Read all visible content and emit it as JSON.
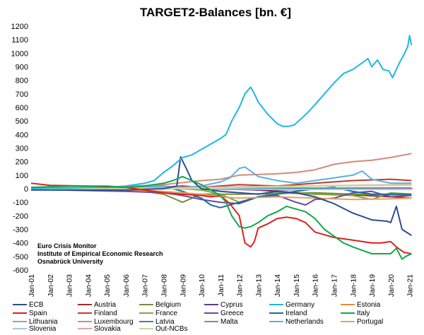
{
  "chart_data": {
    "type": "line",
    "title": "TARGET2-Balances [bn. €]",
    "xlabel": "",
    "ylabel": "",
    "ylim": [
      -600,
      1200
    ],
    "yticks": [
      -600,
      -500,
      -400,
      -300,
      -200,
      -100,
      0,
      100,
      200,
      300,
      400,
      500,
      600,
      700,
      800,
      900,
      1000,
      1100,
      1200
    ],
    "xlim": [
      2001,
      2021.2
    ],
    "xtick_labels": [
      "Jan-01",
      "Jan-02",
      "Jan-03",
      "Jan-04",
      "Jan-05",
      "Jan-06",
      "Jan-07",
      "Jan-08",
      "Jan-09",
      "Jan-10",
      "Jan-11",
      "Jan-12",
      "Jan-13",
      "Jan-14",
      "Jan-15",
      "Jan-16",
      "Jan-17",
      "Jan-18",
      "Jan-19",
      "Jan-20",
      "Jan-21"
    ],
    "grid": false,
    "legend_position": "bottom",
    "annotation": [
      "Euro Crisis Monitor",
      "Institute of Empirical Economic Research",
      "Osnabrück University"
    ],
    "series": [
      {
        "name": "ECB",
        "color": "#2e4d8f",
        "x": [
          2001,
          2006,
          2008,
          2008.7,
          2008.9,
          2009.2,
          2009.5,
          2010,
          2011,
          2012,
          2013,
          2014,
          2015,
          2016,
          2017,
          2018,
          2019,
          2019.8,
          2020.0,
          2020.3,
          2020.6,
          2021.1
        ],
        "values": [
          -10,
          -10,
          0,
          20,
          235,
          150,
          60,
          0,
          -20,
          -30,
          -40,
          -20,
          -30,
          -60,
          -110,
          -180,
          -230,
          -240,
          -250,
          -130,
          -300,
          -345
        ]
      },
      {
        "name": "Austria",
        "color": "#a52a2a",
        "x": [
          2001,
          2005,
          2008,
          2009,
          2010,
          2012,
          2014,
          2016,
          2018,
          2020,
          2021.1
        ],
        "values": [
          0,
          5,
          10,
          20,
          10,
          0,
          -20,
          -40,
          -45,
          -60,
          -50
        ]
      },
      {
        "name": "Belgium",
        "color": "#7a8c3a",
        "x": [
          2001,
          2006,
          2008,
          2009,
          2010,
          2012,
          2014,
          2016,
          2018,
          2020,
          2021.1
        ],
        "values": [
          -5,
          0,
          -40,
          -100,
          -40,
          -40,
          -35,
          -30,
          -40,
          -45,
          -45
        ]
      },
      {
        "name": "Cyprus",
        "color": "#5e3c8c",
        "x": [
          2001,
          2008,
          2012,
          2013,
          2016,
          2021.1
        ],
        "values": [
          0,
          0,
          -5,
          -10,
          -5,
          -5
        ]
      },
      {
        "name": "Germany",
        "color": "#1fb6e6",
        "x": [
          2001,
          2002,
          2003,
          2004,
          2005,
          2006,
          2007,
          2007.5,
          2008,
          2008.5,
          2009,
          2009.5,
          2010,
          2010.5,
          2011,
          2011.3,
          2011.6,
          2012,
          2012.3,
          2012.6,
          2012.8,
          2013,
          2013.5,
          2014,
          2014.3,
          2014.6,
          2014.9,
          2015.3,
          2015.6,
          2016,
          2016.5,
          2017,
          2017.5,
          2018,
          2018.5,
          2018.8,
          2019,
          2019.3,
          2019.6,
          2019.9,
          2020.1,
          2020.3,
          2020.5,
          2020.7,
          2020.9,
          2021.0,
          2021.1
        ],
        "values": [
          0,
          5,
          5,
          10,
          10,
          20,
          40,
          60,
          120,
          170,
          230,
          250,
          290,
          330,
          370,
          400,
          500,
          600,
          700,
          750,
          700,
          640,
          550,
          480,
          460,
          460,
          470,
          520,
          560,
          620,
          700,
          780,
          850,
          880,
          930,
          960,
          900,
          950,
          880,
          870,
          820,
          880,
          940,
          990,
          1050,
          1130,
          1060
        ]
      },
      {
        "name": "Estonia",
        "color": "#e08d3a",
        "x": [
          2001,
          2010,
          2015,
          2021.1
        ],
        "values": [
          0,
          0,
          -5,
          -5
        ]
      },
      {
        "name": "Spain",
        "color": "#e02020",
        "x": [
          2001,
          2002,
          2004,
          2006,
          2008,
          2009,
          2010,
          2010.5,
          2011,
          2011.5,
          2012,
          2012.3,
          2012.6,
          2012.8,
          2013,
          2013.5,
          2014,
          2014.5,
          2015,
          2015.5,
          2016,
          2016.5,
          2017,
          2018,
          2019,
          2019.5,
          2020,
          2020.3,
          2020.7,
          2021.1
        ],
        "values": [
          40,
          25,
          20,
          10,
          -30,
          -40,
          -50,
          -60,
          -50,
          -110,
          -200,
          -400,
          -430,
          -390,
          -290,
          -260,
          -220,
          -210,
          -220,
          -250,
          -320,
          -340,
          -360,
          -380,
          -400,
          -400,
          -390,
          -430,
          -470,
          -480
        ]
      },
      {
        "name": "Finland",
        "color": "#c0392b",
        "x": [
          2001,
          2005,
          2008,
          2010,
          2012,
          2014,
          2016,
          2018,
          2020,
          2021.1
        ],
        "values": [
          0,
          5,
          10,
          10,
          30,
          20,
          40,
          60,
          70,
          60
        ]
      },
      {
        "name": "France",
        "color": "#7fa83c",
        "x": [
          2001,
          2004,
          2008,
          2010,
          2011,
          2012,
          2013,
          2014,
          2016,
          2018,
          2019,
          2020,
          2021.1
        ],
        "values": [
          -5,
          0,
          10,
          -10,
          -40,
          -100,
          -60,
          -30,
          -40,
          -50,
          -80,
          -30,
          -40
        ]
      },
      {
        "name": "Greece",
        "color": "#6a4a9e",
        "x": [
          2001,
          2006,
          2008,
          2009,
          2010,
          2011,
          2012,
          2013,
          2014,
          2015,
          2015.5,
          2016,
          2017,
          2018,
          2019,
          2020,
          2021.1
        ],
        "values": [
          -5,
          -20,
          -30,
          -50,
          -80,
          -100,
          -110,
          -60,
          -50,
          -100,
          -120,
          -80,
          -70,
          -30,
          -20,
          -60,
          -70
        ]
      },
      {
        "name": "Ireland",
        "color": "#1a6ca8",
        "x": [
          2001,
          2006,
          2007.5,
          2008,
          2009,
          2010,
          2010.5,
          2011,
          2011.5,
          2012,
          2013,
          2014,
          2015,
          2016,
          2017,
          2018,
          2019,
          2020,
          2021.1
        ],
        "values": [
          -5,
          0,
          30,
          20,
          -20,
          -70,
          -120,
          -140,
          -120,
          -100,
          -60,
          -40,
          -20,
          0,
          10,
          -20,
          -40,
          -40,
          -40
        ]
      },
      {
        "name": "Italy",
        "color": "#12a84a",
        "x": [
          2001,
          2003,
          2005,
          2006,
          2007,
          2008,
          2008.5,
          2009,
          2009.5,
          2010,
          2011,
          2011.3,
          2011.6,
          2012,
          2012.3,
          2012.6,
          2013,
          2013.5,
          2014,
          2014.5,
          2015,
          2015.5,
          2016,
          2016.5,
          2017,
          2017.5,
          2018,
          2019,
          2020,
          2020.3,
          2020.6,
          2020.8,
          2021.1
        ],
        "values": [
          10,
          20,
          20,
          10,
          20,
          40,
          60,
          90,
          60,
          30,
          -50,
          -100,
          -200,
          -280,
          -290,
          -280,
          -250,
          -200,
          -170,
          -130,
          -150,
          -170,
          -220,
          -300,
          -350,
          -400,
          -430,
          -480,
          -480,
          -440,
          -520,
          -500,
          -480
        ]
      },
      {
        "name": "Lithuania",
        "color": "#8fa0d0",
        "x": [
          2001,
          2010,
          2015,
          2021.1
        ],
        "values": [
          0,
          0,
          5,
          5
        ]
      },
      {
        "name": "Luxembourg",
        "color": "#d48a7a",
        "x": [
          2001,
          2005,
          2008,
          2010,
          2011,
          2012,
          2013,
          2014,
          2015,
          2016,
          2017,
          2018,
          2019,
          2020,
          2021.1
        ],
        "values": [
          5,
          10,
          30,
          60,
          70,
          100,
          105,
          110,
          120,
          140,
          180,
          200,
          210,
          230,
          260
        ]
      },
      {
        "name": "Latvia",
        "color": "#3a8a8a",
        "x": [
          2001,
          2010,
          2015,
          2021.1
        ],
        "values": [
          0,
          0,
          0,
          5
        ]
      },
      {
        "name": "Malta",
        "color": "#9a7ab8",
        "x": [
          2001,
          2010,
          2015,
          2021.1
        ],
        "values": [
          0,
          0,
          -5,
          0
        ]
      },
      {
        "name": "Netherlands",
        "color": "#5ab0e0",
        "x": [
          2001,
          2004,
          2008,
          2009,
          2010,
          2011,
          2011.5,
          2012,
          2012.3,
          2012.6,
          2013,
          2014,
          2015,
          2016,
          2017,
          2018,
          2018.5,
          2019,
          2020,
          2021.1
        ],
        "values": [
          -5,
          0,
          20,
          10,
          20,
          50,
          80,
          150,
          160,
          130,
          90,
          60,
          40,
          60,
          80,
          100,
          130,
          70,
          40,
          40
        ]
      },
      {
        "name": "Portugal",
        "color": "#e8a060",
        "x": [
          2001,
          2006,
          2008,
          2010,
          2011,
          2012,
          2013,
          2014,
          2016,
          2018,
          2020,
          2021.1
        ],
        "values": [
          -5,
          -10,
          -20,
          -40,
          -60,
          -70,
          -65,
          -60,
          -70,
          -80,
          -75,
          -70
        ]
      },
      {
        "name": "Slovenia",
        "color": "#a0c8e8",
        "x": [
          2001,
          2010,
          2015,
          2021.1
        ],
        "values": [
          0,
          0,
          -5,
          -5
        ]
      },
      {
        "name": "Slovakia",
        "color": "#e0a8a0",
        "x": [
          2001,
          2010,
          2015,
          2021.1
        ],
        "values": [
          0,
          10,
          20,
          30
        ]
      },
      {
        "name": "Out-NCBs",
        "color": "#c8d89a",
        "x": [
          2001,
          2008,
          2012,
          2016,
          2021.1
        ],
        "values": [
          0,
          0,
          10,
          20,
          25
        ]
      }
    ]
  }
}
